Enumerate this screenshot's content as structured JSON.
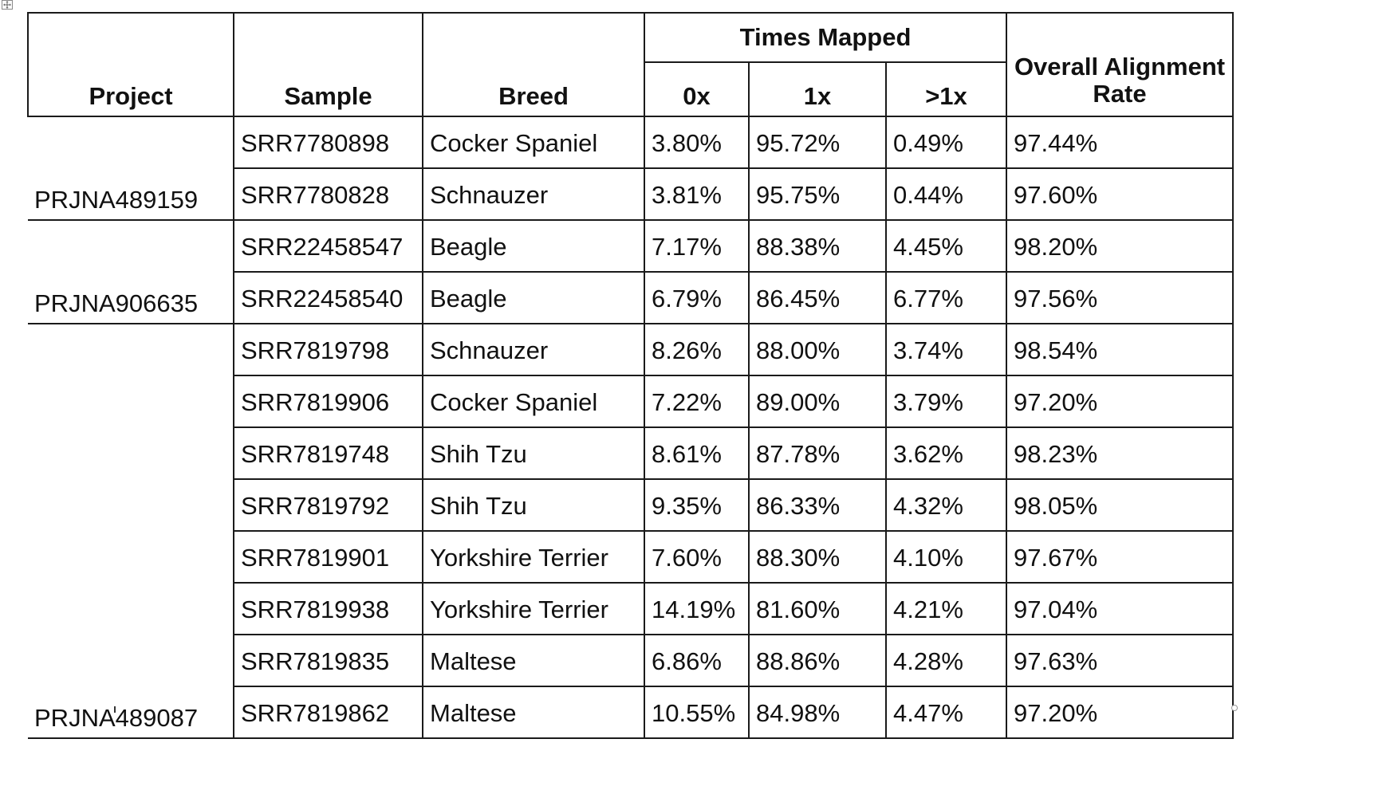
{
  "table": {
    "headers": {
      "project": "Project",
      "sample": "Sample",
      "breed": "Breed",
      "times_mapped": "Times Mapped",
      "zero_x": "0x",
      "one_x": "1x",
      "gt_one_x": ">1x",
      "overall_line1": "Overall Alignment",
      "overall_line2": "Rate"
    },
    "projects": [
      {
        "name": "PRJNA489159",
        "rows": [
          {
            "sample": "SRR7780898",
            "breed": "Cocker Spaniel",
            "zero_x": "3.80%",
            "one_x": "95.72%",
            "gt_one_x": "0.49%",
            "overall": "97.44%"
          },
          {
            "sample": "SRR7780828",
            "breed": "Schnauzer",
            "zero_x": "3.81%",
            "one_x": "95.75%",
            "gt_one_x": "0.44%",
            "overall": "97.60%"
          }
        ]
      },
      {
        "name": "PRJNA906635",
        "rows": [
          {
            "sample": "SRR22458547",
            "breed": "Beagle",
            "zero_x": "7.17%",
            "one_x": "88.38%",
            "gt_one_x": "4.45%",
            "overall": "98.20%"
          },
          {
            "sample": "SRR22458540",
            "breed": "Beagle",
            "zero_x": "6.79%",
            "one_x": "86.45%",
            "gt_one_x": "6.77%",
            "overall": "97.56%"
          }
        ]
      },
      {
        "name": "PRJNA489087",
        "rows": [
          {
            "sample": "SRR7819798",
            "breed": "Schnauzer",
            "zero_x": "8.26%",
            "one_x": "88.00%",
            "gt_one_x": "3.74%",
            "overall": "98.54%"
          },
          {
            "sample": "SRR7819906",
            "breed": "Cocker Spaniel",
            "zero_x": "7.22%",
            "one_x": "89.00%",
            "gt_one_x": "3.79%",
            "overall": "97.20%"
          },
          {
            "sample": "SRR7819748",
            "breed": "Shih Tzu",
            "zero_x": "8.61%",
            "one_x": "87.78%",
            "gt_one_x": "3.62%",
            "overall": "98.23%"
          },
          {
            "sample": "SRR7819792",
            "breed": "Shih Tzu",
            "zero_x": "9.35%",
            "one_x": "86.33%",
            "gt_one_x": "4.32%",
            "overall": "98.05%"
          },
          {
            "sample": "SRR7819901",
            "breed": "Yorkshire Terrier",
            "zero_x": "7.60%",
            "one_x": "88.30%",
            "gt_one_x": "4.10%",
            "overall": "97.67%"
          },
          {
            "sample": "SRR7819938",
            "breed": "Yorkshire Terrier",
            "zero_x": "14.19%",
            "one_x": "81.60%",
            "gt_one_x": "4.21%",
            "overall": "97.04%"
          },
          {
            "sample": "SRR7819835",
            "breed": "Maltese",
            "zero_x": "6.86%",
            "one_x": "88.86%",
            "gt_one_x": "4.28%",
            "overall": "97.63%"
          },
          {
            "sample": "SRR7819862",
            "breed": "Maltese",
            "zero_x": "10.55%",
            "one_x": "84.98%",
            "gt_one_x": "4.47%",
            "overall": "97.20%"
          }
        ]
      }
    ]
  },
  "icons": {
    "move_handle": "move-icon"
  }
}
